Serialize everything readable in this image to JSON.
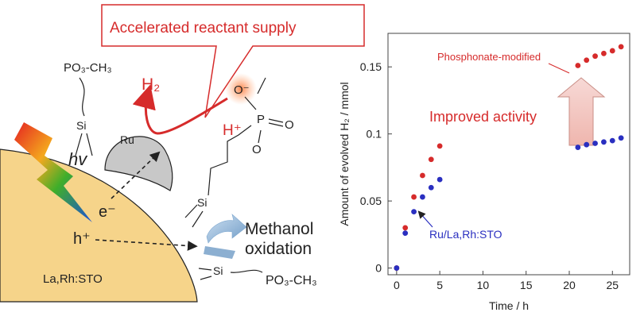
{
  "diagram": {
    "callout_text": "Accelerated reactant supply",
    "left_top_group": "PO₃-CH₃",
    "si_label": "Si",
    "ru_label": "Ru",
    "h2_label": "H₂",
    "hv_label": "hv",
    "electron_label": "e⁻",
    "hole_label": "h⁺",
    "o_minus": "O⁻",
    "p_label": "P",
    "o_double": "O",
    "o_single": "O",
    "h_plus": "H⁺",
    "methanol_line1": "Methanol",
    "methanol_line2": "oxidation",
    "particle_label": "La,Rh:STO",
    "bottom_group": "PO₃-CH₃",
    "colors": {
      "accent_red": "#d62b2b",
      "particle": "#f6d48a",
      "ru_gray": "#c8c8c8",
      "arrow_blue": "#8fb4d6"
    }
  },
  "chart_data": {
    "type": "scatter",
    "xlabel": "Time / h",
    "ylabel": "Amount of evolved H₂ / mmol",
    "xlim": [
      -1,
      27
    ],
    "ylim": [
      -0.005,
      0.175
    ],
    "xticks": [
      0,
      5,
      10,
      15,
      20,
      25
    ],
    "xtick_labels": [
      "0",
      "5",
      "10",
      "15",
      "20",
      "25"
    ],
    "yticks": [
      0,
      0.05,
      0.1,
      0.15
    ],
    "ytick_labels": [
      "0",
      "0.05",
      "0.1",
      "0.15"
    ],
    "series": [
      {
        "name": "Phosphonate-modified",
        "color": "#d62b2b",
        "x": [
          0,
          1,
          2,
          3,
          4,
          5,
          21,
          22,
          23,
          24,
          25,
          26
        ],
        "y": [
          0,
          0.03,
          0.053,
          0.069,
          0.081,
          0.091,
          0.151,
          0.155,
          0.158,
          0.16,
          0.162,
          0.165
        ]
      },
      {
        "name": "Ru/La,Rh:STO",
        "color": "#2a2fc0",
        "x": [
          0,
          1,
          2,
          3,
          4,
          5,
          21,
          22,
          23,
          24,
          25,
          26
        ],
        "y": [
          0,
          0.026,
          0.042,
          0.053,
          0.06,
          0.066,
          0.09,
          0.092,
          0.093,
          0.094,
          0.095,
          0.097
        ]
      }
    ],
    "annotations": {
      "improved_activity": "Improved activity"
    },
    "legend": "inline-labels"
  }
}
